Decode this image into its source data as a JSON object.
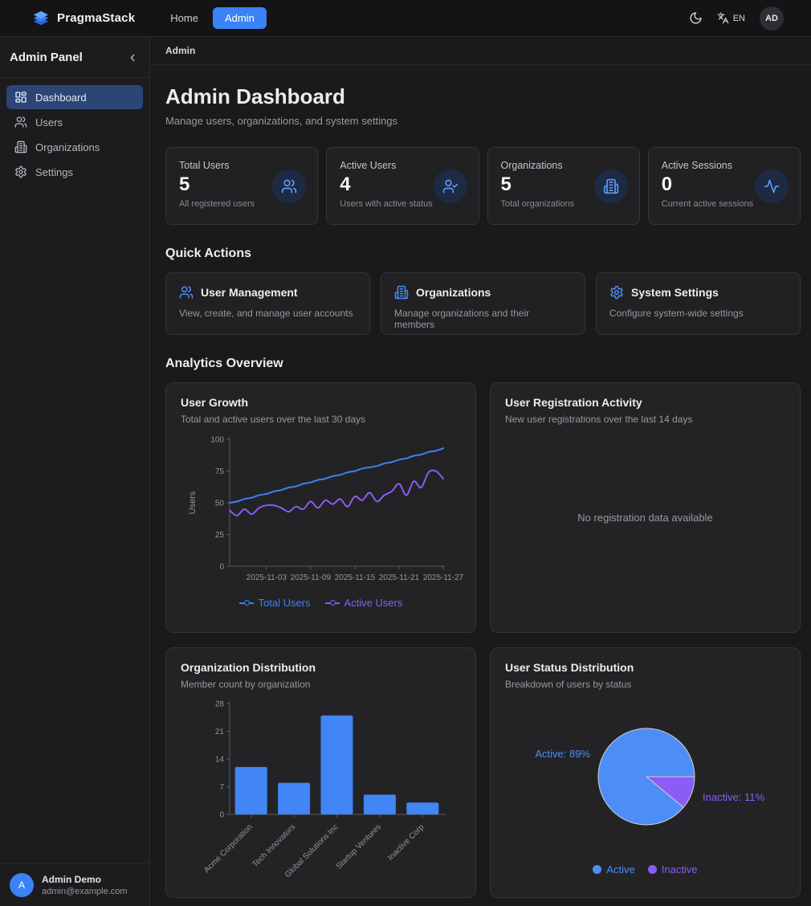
{
  "navbar": {
    "brand": "PragmaStack",
    "links": [
      {
        "label": "Home",
        "icon": "none",
        "active": false
      },
      {
        "label": "Admin",
        "icon": "none",
        "active": true
      }
    ],
    "theme_toggle_icon": "moon-icon",
    "language_icon": "translate-icon",
    "language": "EN",
    "avatar_initials": "AD"
  },
  "sidebar": {
    "title": "Admin Panel",
    "collapse_icon": "chevron-left-icon",
    "items": [
      {
        "label": "Dashboard",
        "icon": "layout-dashboard-icon",
        "active": true
      },
      {
        "label": "Users",
        "icon": "users-icon",
        "active": false
      },
      {
        "label": "Organizations",
        "icon": "building-icon",
        "active": false
      },
      {
        "label": "Settings",
        "icon": "gear-icon",
        "active": false
      }
    ],
    "user": {
      "initial": "A",
      "name": "Admin Demo",
      "email": "admin@example.com"
    }
  },
  "breadcrumb": "Admin",
  "header": {
    "title": "Admin Dashboard",
    "subtitle": "Manage users, organizations, and system settings"
  },
  "stats": [
    {
      "label": "Total Users",
      "value": "5",
      "desc": "All registered users",
      "icon": "users-icon"
    },
    {
      "label": "Active Users",
      "value": "4",
      "desc": "Users with active status",
      "icon": "user-check-icon"
    },
    {
      "label": "Organizations",
      "value": "5",
      "desc": "Total organizations",
      "icon": "building-icon"
    },
    {
      "label": "Active Sessions",
      "value": "0",
      "desc": "Current active sessions",
      "icon": "activity-icon"
    }
  ],
  "quick_actions": {
    "heading": "Quick Actions",
    "items": [
      {
        "title": "User Management",
        "desc": "View, create, and manage user accounts",
        "icon": "users-icon"
      },
      {
        "title": "Organizations",
        "desc": "Manage organizations and their members",
        "icon": "building-icon"
      },
      {
        "title": "System Settings",
        "desc": "Configure system-wide settings",
        "icon": "gear-icon"
      }
    ]
  },
  "analytics": {
    "heading": "Analytics Overview",
    "cards": [
      {
        "title": "User Growth",
        "subtitle": "Total and active users over the last 30 days"
      },
      {
        "title": "User Registration Activity",
        "subtitle": "New user registrations over the last 14 days",
        "empty_text": "No registration data available"
      },
      {
        "title": "Organization Distribution",
        "subtitle": "Member count by organization"
      },
      {
        "title": "User Status Distribution",
        "subtitle": "Breakdown of users by status"
      }
    ]
  },
  "colors": {
    "accent_blue": "#3b82f6",
    "accent_purple": "#8b5cf6",
    "bar_blue": "#4285f4",
    "pie_blue": "#4d8df6",
    "axis_gray": "#5a5a60",
    "tick_text": "#96969b"
  },
  "chart_data": [
    {
      "type": "line",
      "title": "User Growth",
      "ylabel": "Users",
      "ylim": [
        0,
        100
      ],
      "yticks": [
        0,
        25,
        50,
        75,
        100
      ],
      "x_range": [
        "2025-10-29",
        "2025-11-27"
      ],
      "xticks": [
        "2025-11-03",
        "2025-11-09",
        "2025-11-15",
        "2025-11-21",
        "2025-11-27"
      ],
      "xtick_indices": [
        5,
        11,
        17,
        23,
        29
      ],
      "legend_position": "bottom",
      "series": [
        {
          "name": "Total Users",
          "color": "#3b82f6",
          "values": [
            50,
            51,
            53,
            54,
            56,
            57,
            59,
            60,
            62,
            63,
            65,
            66,
            68,
            69,
            71,
            72,
            74,
            75,
            77,
            78,
            79,
            81,
            82,
            84,
            85,
            87,
            88,
            90,
            91,
            93
          ]
        },
        {
          "name": "Active Users",
          "color": "#8b5cf6",
          "values": [
            44,
            40,
            45,
            41,
            46,
            48,
            48,
            46,
            43,
            47,
            45,
            51,
            46,
            52,
            49,
            53,
            47,
            55,
            52,
            58,
            51,
            56,
            59,
            65,
            56,
            67,
            62,
            74,
            75,
            69
          ]
        }
      ]
    },
    {
      "type": "bar",
      "title": "Organization Distribution",
      "categories": [
        "Acme Corporation",
        "Tech Innovators",
        "Global Solutions Inc",
        "Startup Ventures",
        "Inactive Corp"
      ],
      "values": [
        12,
        8,
        25,
        5,
        3
      ],
      "ylim": [
        0,
        28
      ],
      "yticks": [
        0,
        7,
        14,
        21,
        28
      ],
      "bar_color": "#4285f4"
    },
    {
      "type": "pie",
      "title": "User Status Distribution",
      "slices": [
        {
          "label": "Active",
          "pct": 89,
          "color": "#4d8df6"
        },
        {
          "label": "Inactive",
          "pct": 11,
          "color": "#8b5cf6"
        }
      ],
      "label_texts": [
        "Active: 89%",
        "Inactive: 11%"
      ],
      "legend": [
        "Active",
        "Inactive"
      ],
      "legend_position": "bottom"
    }
  ]
}
